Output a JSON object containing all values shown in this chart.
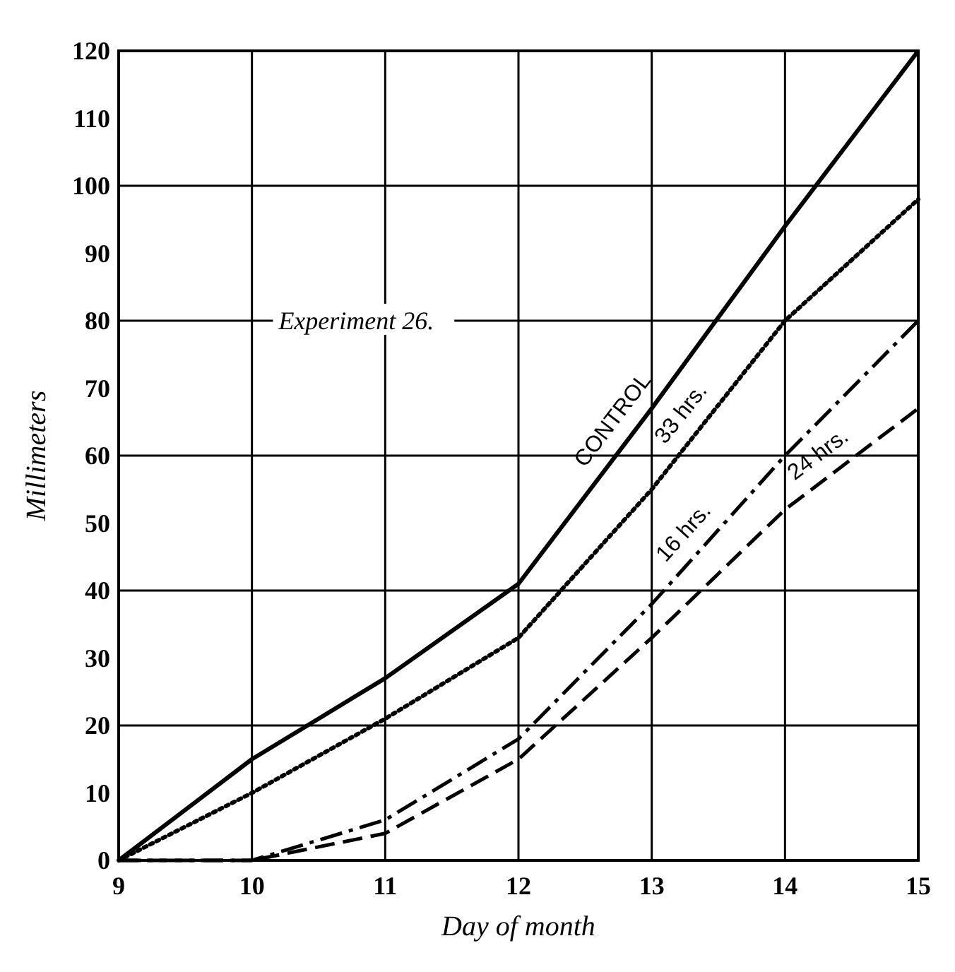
{
  "chart_data": {
    "type": "line",
    "xlabel": "Day of month",
    "ylabel": "Millimeters",
    "x": [
      9,
      10,
      11,
      12,
      13,
      14,
      15
    ],
    "series": [
      {
        "name": "CONTROL",
        "color": "#000000",
        "line_style": "solid",
        "values": [
          0,
          15,
          27,
          41,
          67,
          94,
          120
        ]
      },
      {
        "name": "33 hrs.",
        "color": "#000000",
        "line_style": "dotted",
        "values": [
          0,
          10,
          21,
          33,
          55,
          80,
          98
        ]
      },
      {
        "name": "16 hrs.",
        "color": "#000000",
        "line_style": "dashed",
        "values": [
          0,
          0,
          6,
          18,
          38,
          60,
          80
        ]
      },
      {
        "name": "24 hrs.",
        "color": "#000000",
        "line_style": "dashed",
        "values": [
          0,
          0,
          4,
          15,
          33,
          52,
          67
        ]
      }
    ],
    "annotations": [
      "Experiment 26."
    ],
    "xlim": [
      9,
      15
    ],
    "xticks": [
      9,
      10,
      11,
      12,
      13,
      14,
      15
    ],
    "ylim": [
      0,
      120
    ],
    "yticks": [
      0,
      10,
      20,
      30,
      40,
      50,
      60,
      70,
      80,
      90,
      100,
      110,
      120
    ],
    "grid": true,
    "marker": "none"
  }
}
